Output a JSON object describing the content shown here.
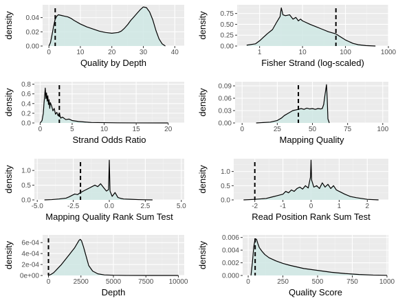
{
  "colors": {
    "panel": "#ebebeb",
    "grid_major": "#ffffff",
    "grid_minor": "#f4f4f4",
    "fill": "#cfe8e4",
    "line": "#000000",
    "tick_text": "#4d4d4d"
  },
  "chart_data": [
    {
      "type": "area",
      "xlabel": "Quality by Depth",
      "ylabel": "density",
      "xscale": "linear",
      "xlim": [
        -2,
        43
      ],
      "ylim": [
        0,
        0.058
      ],
      "xticks": [
        0,
        10,
        20,
        30,
        40
      ],
      "xtick_labels": [
        "0",
        "10",
        "20",
        "30",
        "40"
      ],
      "yticks": [
        0,
        0.02,
        0.04
      ],
      "ytick_labels": [
        "0.00",
        "0.02",
        "0.04"
      ],
      "cutoff": 2,
      "x": [
        0,
        0.5,
        1,
        1.5,
        2,
        2.5,
        3,
        4,
        5,
        6,
        7,
        8,
        10,
        12,
        14,
        16,
        18,
        20,
        22,
        23,
        24,
        25,
        26,
        27,
        28,
        29,
        30,
        31,
        32,
        33,
        34,
        35,
        36,
        37
      ],
      "y": [
        0,
        0.005,
        0.016,
        0.028,
        0.038,
        0.042,
        0.044,
        0.043,
        0.042,
        0.041,
        0.039,
        0.036,
        0.031,
        0.027,
        0.024,
        0.021,
        0.019,
        0.018,
        0.019,
        0.021,
        0.025,
        0.03,
        0.036,
        0.041,
        0.046,
        0.051,
        0.055,
        0.054,
        0.048,
        0.037,
        0.022,
        0.01,
        0.003,
        0
      ]
    },
    {
      "type": "area",
      "xlabel": "Fisher Strand (log-scaled)",
      "ylabel": "density",
      "xscale": "log10",
      "xlim": [
        0.3,
        1000
      ],
      "ylim": [
        0,
        0.95
      ],
      "xticks": [
        1,
        10,
        100,
        1000
      ],
      "xtick_labels": [
        "1",
        "10",
        "100",
        "1000"
      ],
      "yticks": [
        0,
        0.25,
        0.5,
        0.75
      ],
      "ytick_labels": [
        "0.00",
        "0.25",
        "0.50",
        "0.75"
      ],
      "cutoff": 60,
      "x": [
        0.5,
        0.8,
        1,
        1.5,
        2,
        2.5,
        3,
        3.2,
        3.5,
        4,
        5,
        6,
        7,
        8,
        9,
        10,
        15,
        20,
        30,
        40,
        60,
        80,
        100,
        150,
        200,
        300,
        500
      ],
      "y": [
        0.02,
        0.05,
        0.12,
        0.28,
        0.38,
        0.55,
        0.68,
        0.88,
        0.72,
        0.7,
        0.72,
        0.62,
        0.66,
        0.58,
        0.62,
        0.58,
        0.5,
        0.45,
        0.38,
        0.33,
        0.28,
        0.2,
        0.14,
        0.06,
        0.03,
        0.01,
        0
      ]
    },
    {
      "type": "area",
      "xlabel": "Strand Odds Ratio",
      "ylabel": "density",
      "xscale": "linear",
      "xlim": [
        -0.9,
        22.5
      ],
      "ylim": [
        0,
        0.85
      ],
      "xticks": [
        0,
        5,
        10,
        15,
        20
      ],
      "xtick_labels": [
        "0",
        "5",
        "10",
        "15",
        "20"
      ],
      "yticks": [
        0,
        0.2,
        0.4,
        0.6,
        0.8
      ],
      "ytick_labels": [
        "0.0",
        "0.2",
        "0.4",
        "0.6",
        "0.8"
      ],
      "cutoff": 3,
      "x": [
        0,
        0.3,
        0.5,
        0.6,
        0.7,
        0.8,
        0.9,
        1.0,
        1.1,
        1.2,
        1.3,
        1.4,
        1.5,
        1.6,
        1.8,
        2.0,
        2.2,
        2.4,
        2.6,
        2.8,
        3.0,
        3.2,
        3.5,
        4,
        4.5,
        5,
        6,
        7,
        8,
        10,
        12,
        15,
        20
      ],
      "y": [
        0,
        0.05,
        0.2,
        0.4,
        0.55,
        0.72,
        0.5,
        0.62,
        0.45,
        0.56,
        0.38,
        0.48,
        0.3,
        0.42,
        0.35,
        0.25,
        0.3,
        0.18,
        0.22,
        0.15,
        0.2,
        0.1,
        0.12,
        0.07,
        0.08,
        0.05,
        0.03,
        0.02,
        0.01,
        0.006,
        0.003,
        0.001,
        0
      ]
    },
    {
      "type": "area",
      "xlabel": "Mapping Quality",
      "ylabel": "density",
      "xscale": "linear",
      "xlim": [
        -5,
        104
      ],
      "ylim": [
        0,
        0.1
      ],
      "xticks": [
        0,
        25,
        50,
        75,
        100
      ],
      "xtick_labels": [
        "0",
        "25",
        "50",
        "75",
        "100"
      ],
      "yticks": [
        0,
        0.03,
        0.06,
        0.09
      ],
      "ytick_labels": [
        "0.00",
        "0.03",
        "0.06",
        "0.09"
      ],
      "cutoff": 40,
      "x": [
        10,
        20,
        25,
        28,
        30,
        33,
        36,
        40,
        42,
        44,
        46,
        48,
        50,
        52,
        54,
        56,
        57,
        58,
        59,
        60,
        60.5,
        61,
        62
      ],
      "y": [
        0,
        0.002,
        0.006,
        0.012,
        0.018,
        0.024,
        0.03,
        0.033,
        0.035,
        0.033,
        0.036,
        0.034,
        0.035,
        0.033,
        0.035,
        0.034,
        0.035,
        0.045,
        0.07,
        0.093,
        0.06,
        0.01,
        0
      ]
    },
    {
      "type": "area",
      "xlabel": "Mapping Quality Rank Sum Test",
      "ylabel": "density",
      "xscale": "linear",
      "xlim": [
        -5.2,
        5.2
      ],
      "ylim": [
        0,
        1.4
      ],
      "xticks": [
        -5,
        -2.5,
        0,
        2.5,
        5
      ],
      "xtick_labels": [
        "-5.0",
        "-2.5",
        "0.0",
        "2.5",
        "5.0"
      ],
      "yticks": [
        0,
        0.5,
        1
      ],
      "ytick_labels": [
        "0.0",
        "0.5",
        "1.0"
      ],
      "cutoff": -2,
      "x": [
        -4.5,
        -4,
        -3.5,
        -3,
        -2.8,
        -2.6,
        -2.4,
        -2.2,
        -2.0,
        -1.8,
        -1.6,
        -1.4,
        -1.2,
        -1.0,
        -0.8,
        -0.6,
        -0.4,
        -0.2,
        -0.05,
        0,
        0.05,
        0.2,
        0.4,
        0.6,
        0.8,
        1.0,
        1.5,
        2.0,
        2.5,
        3
      ],
      "y": [
        0,
        0.01,
        0.03,
        0.06,
        0.1,
        0.15,
        0.2,
        0.18,
        0.25,
        0.3,
        0.35,
        0.4,
        0.45,
        0.5,
        0.45,
        0.55,
        0.42,
        0.3,
        0.35,
        1.35,
        0.3,
        0.12,
        0.25,
        0.08,
        0.05,
        0.03,
        0.02,
        0.01,
        0.005,
        0
      ]
    },
    {
      "type": "area",
      "xlabel": "Read Position Rank Sum Test",
      "ylabel": "density",
      "xscale": "linear",
      "xlim": [
        -2.75,
        2.75
      ],
      "ylim": [
        0,
        1.45
      ],
      "xticks": [
        -2,
        -1,
        0,
        1,
        2
      ],
      "xtick_labels": [
        "-2",
        "-1",
        "0",
        "1",
        "2"
      ],
      "yticks": [
        0,
        0.5,
        1
      ],
      "ytick_labels": [
        "0.0",
        "0.5",
        "1.0"
      ],
      "cutoff": -2,
      "x": [
        -2.4,
        -2.0,
        -1.6,
        -1.4,
        -1.2,
        -1.0,
        -0.9,
        -0.8,
        -0.7,
        -0.6,
        -0.5,
        -0.4,
        -0.3,
        -0.2,
        -0.1,
        -0.02,
        0,
        0.02,
        0.1,
        0.2,
        0.3,
        0.4,
        0.5,
        0.6,
        0.7,
        0.8,
        0.9,
        1.0,
        1.2,
        1.4,
        1.6,
        2.0,
        2.4
      ],
      "y": [
        0,
        0.02,
        0.05,
        0.1,
        0.15,
        0.2,
        0.3,
        0.25,
        0.35,
        0.3,
        0.4,
        0.45,
        0.38,
        0.5,
        0.42,
        0.8,
        1.4,
        0.7,
        0.45,
        0.5,
        0.4,
        0.6,
        0.45,
        0.55,
        0.4,
        0.5,
        0.35,
        0.3,
        0.2,
        0.12,
        0.08,
        0.02,
        0
      ]
    },
    {
      "type": "area",
      "xlabel": "Depth",
      "ylabel": "density",
      "xscale": "linear",
      "xlim": [
        -450,
        10450
      ],
      "ylim": [
        0,
        0.00074
      ],
      "xticks": [
        0,
        2500,
        5000,
        7500,
        10000
      ],
      "xtick_labels": [
        "0",
        "2500",
        "5000",
        "7500",
        "10000"
      ],
      "yticks": [
        0,
        0.0002,
        0.0004,
        0.0006
      ],
      "ytick_labels": [
        "0e+00",
        "2e-04",
        "4e-04",
        "6e-04"
      ],
      "cutoff": 0,
      "x": [
        0,
        200,
        400,
        600,
        800,
        1000,
        1200,
        1400,
        1600,
        1800,
        2000,
        2200,
        2350,
        2450,
        2550,
        2700,
        2900,
        3100,
        3400,
        3800,
        4300,
        5000,
        6000,
        8000,
        10000
      ],
      "y": [
        0,
        2e-05,
        5e-05,
        0.0001,
        0.00015,
        0.0002,
        0.00026,
        0.00032,
        0.00038,
        0.00044,
        0.0005,
        0.00058,
        0.00064,
        0.00066,
        0.00063,
        0.00052,
        0.00035,
        0.00018,
        8e-05,
        3e-05,
        1e-05,
        4e-06,
        1e-06,
        0,
        0
      ]
    },
    {
      "type": "area",
      "xlabel": "Quality Score",
      "ylabel": "density",
      "xscale": "linear",
      "xlim": [
        -40,
        1010
      ],
      "ylim": [
        0,
        0.0064
      ],
      "xticks": [
        0,
        250,
        500,
        750,
        1000
      ],
      "xtick_labels": [
        "0",
        "250",
        "500",
        "750",
        "1000"
      ],
      "yticks": [
        0,
        0.002,
        0.004,
        0.006
      ],
      "ytick_labels": [
        "0.000",
        "0.002",
        "0.004",
        "0.006"
      ],
      "cutoff": 50,
      "x": [
        20,
        30,
        40,
        50,
        60,
        70,
        80,
        100,
        120,
        150,
        200,
        250,
        300,
        400,
        500,
        600,
        700,
        800,
        900,
        1000
      ],
      "y": [
        0,
        0.002,
        0.0045,
        0.0058,
        0.0057,
        0.005,
        0.0044,
        0.0038,
        0.0033,
        0.0028,
        0.0023,
        0.0019,
        0.0016,
        0.0011,
        0.0008,
        0.0005,
        0.0003,
        0.00015,
        6e-05,
        2e-05
      ]
    }
  ]
}
